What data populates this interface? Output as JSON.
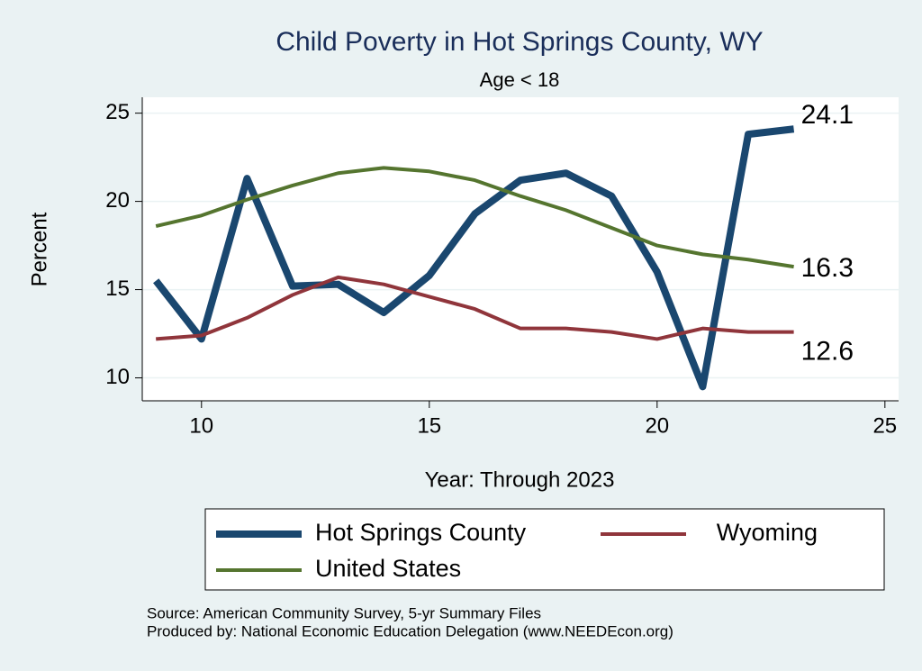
{
  "chart_data": {
    "type": "line",
    "title": "Child Poverty in Hot Springs County, WY",
    "subtitle": "Age < 18",
    "x_label": "Year: Through 2023",
    "y_label": "Percent",
    "notes": [
      "Source: American Community Survey, 5-yr Summary Files",
      "Produced by: National Economic Education Delegation (www.NEEDEcon.org)"
    ],
    "x": [
      9,
      10,
      11,
      12,
      13,
      14,
      15,
      16,
      17,
      18,
      19,
      20,
      21,
      22,
      23
    ],
    "series": [
      {
        "name": "Hot Springs County",
        "color": "#1a476f",
        "values": [
          15.5,
          12.2,
          21.3,
          15.2,
          15.3,
          13.7,
          15.8,
          19.3,
          21.2,
          21.6,
          20.3,
          16.0,
          9.5,
          23.8,
          24.1
        ],
        "value_labels": [
          null,
          null,
          null,
          null,
          null,
          null,
          null,
          null,
          null,
          null,
          null,
          null,
          null,
          null,
          "24.1"
        ]
      },
      {
        "name": "Wyoming",
        "color": "#90353b",
        "values": [
          12.2,
          12.4,
          13.4,
          14.7,
          15.7,
          15.3,
          14.6,
          13.9,
          12.8,
          12.8,
          12.6,
          12.2,
          12.8,
          12.6,
          12.6
        ],
        "value_labels": [
          null,
          null,
          null,
          null,
          null,
          null,
          null,
          null,
          null,
          null,
          null,
          null,
          null,
          null,
          "12.6"
        ]
      },
      {
        "name": "United States",
        "color": "#55752f",
        "values": [
          18.6,
          19.2,
          20.1,
          20.9,
          21.6,
          21.9,
          21.7,
          21.2,
          20.3,
          19.5,
          18.5,
          17.5,
          17.0,
          16.7,
          16.3
        ],
        "value_labels": [
          null,
          null,
          null,
          null,
          null,
          null,
          null,
          null,
          null,
          null,
          null,
          null,
          null,
          null,
          "16.3"
        ]
      }
    ],
    "xlim": [
      8.7,
      25.3
    ],
    "xticks": [
      10,
      15,
      20,
      25
    ],
    "ylim": [
      8.7,
      25.9
    ],
    "yticks": [
      10,
      15,
      20,
      25
    ],
    "grid": true
  }
}
